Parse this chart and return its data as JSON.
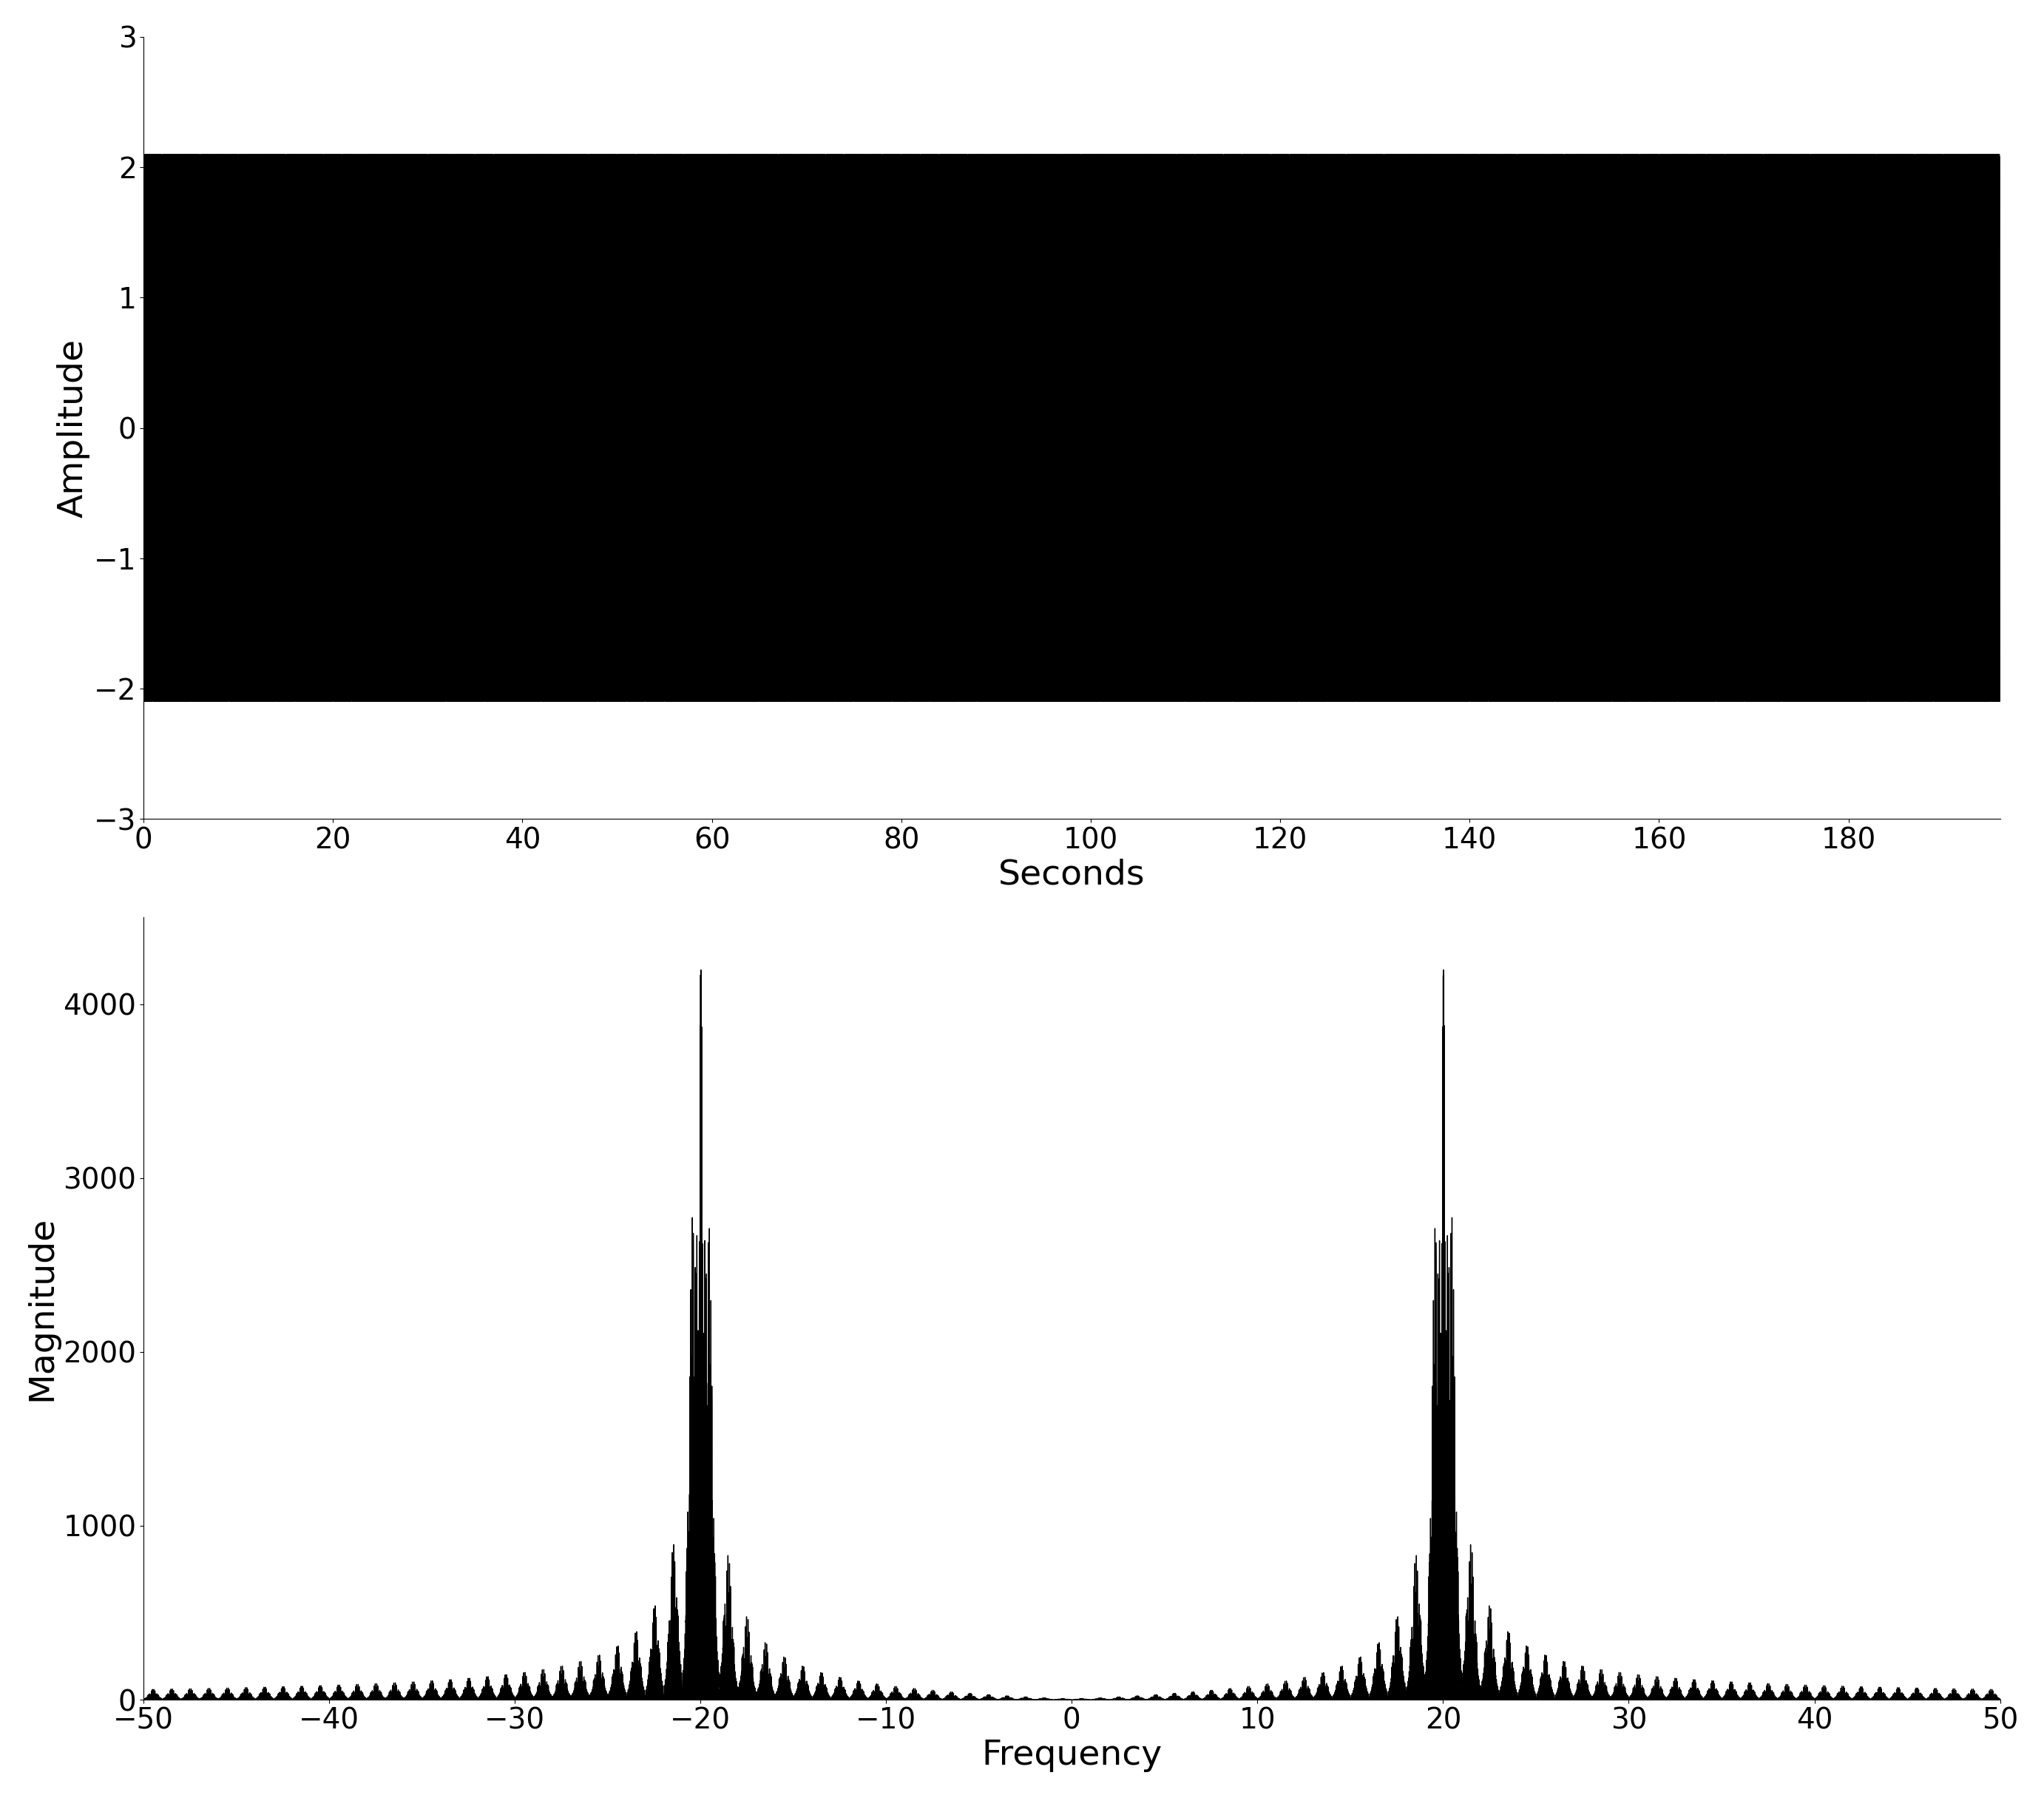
{
  "top_plot": {
    "xlabel": "Seconds",
    "ylabel": "Amplitude",
    "xlim": [
      0,
      196
    ],
    "ylim": [
      -3,
      3
    ],
    "xticks": [
      0,
      20,
      40,
      60,
      80,
      100,
      120,
      140,
      160,
      180
    ],
    "yticks": [
      -3,
      -2,
      -1,
      0,
      1,
      2,
      3
    ],
    "signal_duration": 196,
    "sample_rate": 1000,
    "carrier_freq": 20,
    "color": "#000000"
  },
  "bottom_plot": {
    "xlabel": "Frequency",
    "ylabel": "Magnitude",
    "xlim": [
      -50,
      50
    ],
    "ylim": [
      0,
      4500
    ],
    "xticks": [
      -50,
      -40,
      -30,
      -20,
      -10,
      0,
      10,
      20,
      30,
      40,
      50
    ],
    "yticks": [
      0,
      1000,
      2000,
      3000,
      4000
    ],
    "carrier_freq": 20,
    "color": "#000000"
  },
  "figure_bg": "#ffffff",
  "label_fontsize": 34,
  "tick_fontsize": 28
}
